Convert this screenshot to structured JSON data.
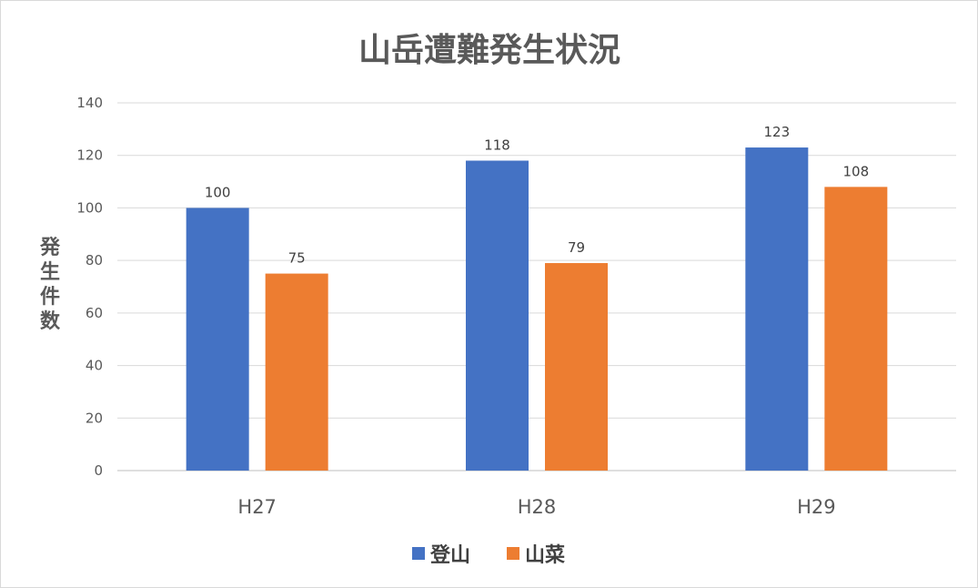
{
  "chart_data": {
    "type": "bar",
    "title": "山岳遭難発生状況",
    "ylabel": "発生件数",
    "xlabel": "",
    "categories": [
      "H27",
      "H28",
      "H29"
    ],
    "series": [
      {
        "name": "登山",
        "color": "#4472c4",
        "values": [
          100,
          118,
          123
        ]
      },
      {
        "name": "山菜",
        "color": "#ed7d31",
        "values": [
          75,
          79,
          108
        ]
      }
    ],
    "ylim": [
      0,
      140
    ],
    "yticks": [
      0,
      20,
      40,
      60,
      80,
      100,
      120,
      140
    ],
    "grid": true,
    "legend_position": "bottom",
    "data_labels": true
  }
}
